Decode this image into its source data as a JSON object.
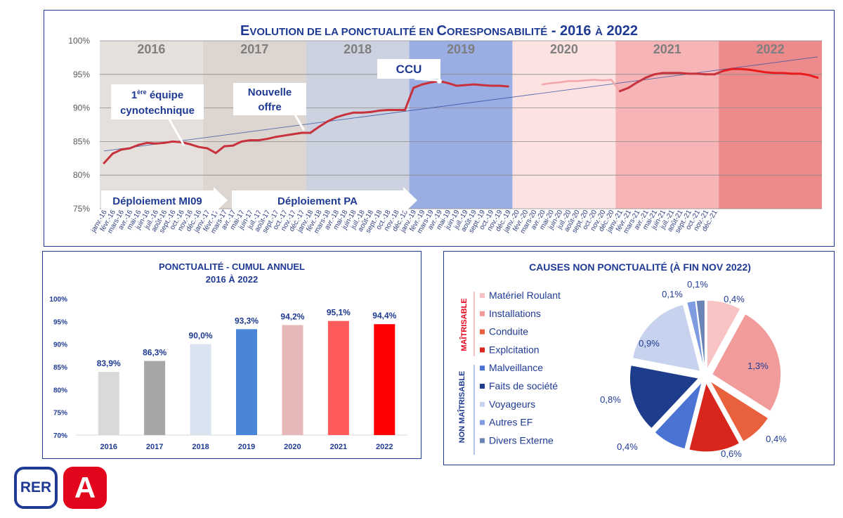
{
  "top_chart": {
    "title": "Evolution de la ponctualité en Coresponsabilité - 2016 à 2022",
    "title_parts": {
      "E": "E",
      "volution": "VOLUTION DE LA PONCTUALITÉ EN ",
      "C": "C",
      "oresp": "ORESPONSABILITÉ",
      "dash": " - 2016 ",
      "a": "À",
      "end": " 2022"
    },
    "y_ticks": [
      "100%",
      "95%",
      "90%",
      "85%",
      "80%",
      "75%"
    ],
    "years": [
      "2016",
      "2017",
      "2018",
      "2019",
      "2020",
      "2021",
      "2022"
    ],
    "year_colors": [
      "#e6e0dd",
      "#ddd5d0",
      "#cdd2e0",
      "#9aaee3",
      "#fde2e2",
      "#f6b4b6",
      "#ec8a8c"
    ],
    "annotations": {
      "equipe_line1": "1",
      "equipe_sup": "ère",
      "equipe_line1b": " équipe",
      "equipe_line2": "cynotechnique",
      "offre_line1": "Nouvelle",
      "offre_line2": "offre",
      "ccu": "CCU",
      "deploy1": "Déploiement MI09",
      "deploy2": "Déploiement PA"
    },
    "month_labels": [
      "janv.-16",
      "févr.-16",
      "mars-16",
      "avr.-16",
      "mai-16",
      "juin-16",
      "juil.-16",
      "août-16",
      "sept.-16",
      "oct.-16",
      "nov.-16",
      "déc.-16",
      "janv.-17",
      "févr.-17",
      "mars-17",
      "avr.-17",
      "mai-17",
      "juin-17",
      "juil.-17",
      "août-17",
      "sept.-17",
      "oct.-17",
      "nov.-17",
      "déc.-17",
      "janv.-18",
      "févr.-18",
      "mars-18",
      "avr.-18",
      "mai-18",
      "juin-18",
      "juil.-18",
      "août-18",
      "sept.-18",
      "oct.-18",
      "nov.-18",
      "déc.-18",
      "janv.-19",
      "févr.-19",
      "mars-19",
      "avr.-19",
      "mai-19",
      "juin-19",
      "juil.-19",
      "août-19",
      "sept.-19",
      "oct.-19",
      "nov.-19",
      "déc.-19",
      "janv.-20",
      "févr.-20",
      "mars-20",
      "avr.-20",
      "mai-20",
      "juin-20",
      "juil.-20",
      "août-20",
      "sept.-20",
      "oct.-20",
      "nov.-20",
      "déc.-20",
      "janv.-21",
      "févr.-21",
      "mars-21",
      "avr.-21",
      "mai-21",
      "juin-21",
      "juil.-21",
      "août-21",
      "sept.-21",
      "oct.-21",
      "nov.-21",
      "déc.-21",
      "janv.-22",
      "févr.-22",
      "mars-22",
      "avr.-22",
      "mai-22",
      "juin-22",
      "juil.-22",
      "août-22",
      "sept.-22",
      "oct.-22",
      "nov.-22",
      "déc.-22"
    ]
  },
  "bar_chart": {
    "title_line1": "PONCTUALITÉ - CUMUL ANNUEL",
    "title_line2": "2016 À 2022",
    "y_ticks": [
      "100%",
      "95%",
      "90%",
      "85%",
      "80%",
      "75%",
      "70%"
    ]
  },
  "pie_chart": {
    "title": "CAUSES NON PONCTUALITÉ (À FIN NOV 2022)",
    "group_maitrisable": "MAÎTRISABLE",
    "group_non": "NON MAÎTRISABLE"
  },
  "logo": {
    "rer": "RER",
    "line": "A"
  },
  "chart_data": [
    {
      "type": "line",
      "title": "Evolution de la ponctualité en Coresponsabilité - 2016 à 2022",
      "ylim": [
        75,
        100
      ],
      "y_unit": "%",
      "series": [
        {
          "values": [
            81.8,
            83.2,
            83.8,
            84.0,
            84.5,
            84.8,
            84.7,
            84.8,
            85.0,
            84.9,
            84.6,
            84.2,
            84.0,
            83.3,
            84.3,
            84.4,
            85.0,
            85.2,
            85.2,
            85.4,
            85.7,
            85.9,
            86.1,
            86.3,
            86.3,
            87.2,
            88.0,
            88.6,
            89.0,
            89.3,
            89.3,
            89.4,
            89.6,
            89.7,
            89.7,
            89.7,
            93.0,
            93.5,
            93.8,
            94.0,
            93.7,
            93.3,
            93.4,
            93.5,
            93.4,
            93.3,
            93.3,
            93.2,
            null,
            93.0,
            null,
            93.5,
            93.7,
            93.8,
            94.0,
            94.0,
            94.1,
            94.2,
            94.1,
            94.2,
            92.5,
            93.0,
            93.8,
            94.5,
            95.0,
            95.2,
            95.2,
            95.2,
            95.1,
            95.1,
            95.0,
            95.0,
            95.5,
            95.8,
            95.8,
            95.7,
            95.5,
            95.3,
            95.2,
            95.2,
            95.1,
            95.1,
            94.9,
            94.5
          ]
        }
      ],
      "trend": {
        "start": 83.6,
        "end": 97.6
      }
    },
    {
      "type": "bar",
      "title": "PONCTUALITÉ - CUMUL ANNUEL 2016 À 2022",
      "categories": [
        "2016",
        "2017",
        "2018",
        "2019",
        "2020",
        "2021",
        "2022"
      ],
      "values": [
        83.9,
        86.3,
        90.0,
        93.3,
        94.2,
        95.1,
        94.4
      ],
      "labels": [
        "83,9%",
        "86,3%",
        "90,0%",
        "93,3%",
        "94,2%",
        "95,1%",
        "94,4%"
      ],
      "colors": [
        "#d9d9d9",
        "#a6a6a6",
        "#dae3f0",
        "#4a86d8",
        "#e6b8b8",
        "#ff5b5b",
        "#ff0000"
      ],
      "ylim": [
        70,
        100
      ]
    },
    {
      "type": "pie",
      "title": "CAUSES NON PONCTUALITÉ (À FIN NOV 2022)",
      "slices": [
        {
          "name": "Matériel Roulant",
          "value": 0.4,
          "label": "0,4%",
          "color": "#f7c3c3"
        },
        {
          "name": "Installations",
          "value": 1.3,
          "label": "1,3%",
          "color": "#f29b9b"
        },
        {
          "name": "Conduite",
          "value": 0.4,
          "label": "0,4%",
          "color": "#e8603c"
        },
        {
          "name": "Exploitation",
          "value": 0.6,
          "label": "0,6%",
          "color": "#d9261c"
        },
        {
          "name": "Malveillance",
          "value": 0.4,
          "label": "0,4%",
          "color": "#4a73d4"
        },
        {
          "name": "Faits de société",
          "value": 0.8,
          "label": "0,8%",
          "color": "#1e3c8c"
        },
        {
          "name": "Voyageurs",
          "value": 0.9,
          "label": "0,9%",
          "color": "#c7d3ee"
        },
        {
          "name": "Autres EF",
          "value": 0.1,
          "label": "0,1%",
          "color": "#7f9ce0"
        },
        {
          "name": "Divers Externe",
          "value": 0.1,
          "label": "0,1%",
          "color": "#6b84b8"
        }
      ],
      "legend_labels": [
        "Matériel Roulant",
        "Installations",
        "Conduite",
        "Explcitation",
        "Malveillance",
        "Faits de société",
        "Voyageurs",
        "Autres EF",
        "Divers Externe"
      ]
    }
  ]
}
